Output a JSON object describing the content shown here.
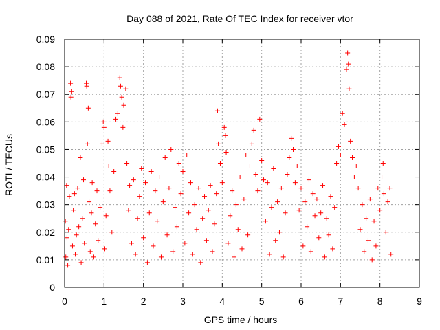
{
  "chart_data": {
    "type": "scatter",
    "title": "Day 088 of 2021, Rate Of TEC Index for receiver vtor",
    "xlabel": "GPS time / hours",
    "ylabel": "ROTI / TECUs",
    "xlim": [
      0,
      9
    ],
    "ylim": [
      0,
      0.09
    ],
    "xticks": [
      0,
      1,
      2,
      3,
      4,
      5,
      6,
      7,
      8,
      9
    ],
    "yticks": [
      0,
      0.01,
      0.02,
      0.03,
      0.04,
      0.05,
      0.06,
      0.07,
      0.08,
      0.09
    ],
    "xtick_labels": [
      "0",
      "1",
      "2",
      "3",
      "4",
      "5",
      "6",
      "7",
      "8",
      "9"
    ],
    "ytick_labels": [
      "0",
      "0.01",
      "0.02",
      "0.03",
      "0.04",
      "0.05",
      "0.06",
      "0.07",
      "0.08",
      "0.09"
    ],
    "grid": true,
    "marker": "+",
    "color": "#ff0000",
    "series": [
      {
        "points": [
          [
            0.02,
            0.024
          ],
          [
            0.03,
            0.011
          ],
          [
            0.05,
            0.037
          ],
          [
            0.06,
            0.018
          ],
          [
            0.08,
            0.008
          ],
          [
            0.1,
            0.021
          ],
          [
            0.12,
            0.033
          ],
          [
            0.15,
            0.074
          ],
          [
            0.16,
            0.069
          ],
          [
            0.18,
            0.071
          ],
          [
            0.2,
            0.015
          ],
          [
            0.22,
            0.028
          ],
          [
            0.25,
            0.034
          ],
          [
            0.27,
            0.012
          ],
          [
            0.3,
            0.019
          ],
          [
            0.33,
            0.036
          ],
          [
            0.36,
            0.022
          ],
          [
            0.4,
            0.047
          ],
          [
            0.42,
            0.009
          ],
          [
            0.45,
            0.025
          ],
          [
            0.48,
            0.039
          ],
          [
            0.5,
            0.016
          ],
          [
            0.55,
            0.074
          ],
          [
            0.56,
            0.073
          ],
          [
            0.58,
            0.052
          ],
          [
            0.6,
            0.065
          ],
          [
            0.62,
            0.031
          ],
          [
            0.65,
            0.013
          ],
          [
            0.68,
            0.027
          ],
          [
            0.7,
            0.038
          ],
          [
            0.74,
            0.011
          ],
          [
            0.78,
            0.023
          ],
          [
            0.82,
            0.035
          ],
          [
            0.85,
            0.017
          ],
          [
            0.9,
            0.029
          ],
          [
            0.95,
            0.052
          ],
          [
            0.98,
            0.06
          ],
          [
            1.0,
            0.058
          ],
          [
            1.02,
            0.014
          ],
          [
            1.05,
            0.026
          ],
          [
            1.1,
            0.053
          ],
          [
            1.12,
            0.044
          ],
          [
            1.15,
            0.035
          ],
          [
            1.2,
            0.02
          ],
          [
            1.25,
            0.042
          ],
          [
            1.3,
            0.061
          ],
          [
            1.35,
            0.063
          ],
          [
            1.4,
            0.076
          ],
          [
            1.42,
            0.073
          ],
          [
            1.45,
            0.069
          ],
          [
            1.48,
            0.058
          ],
          [
            1.5,
            0.066
          ],
          [
            1.55,
            0.072
          ],
          [
            1.58,
            0.045
          ],
          [
            1.62,
            0.028
          ],
          [
            1.65,
            0.037
          ],
          [
            1.7,
            0.016
          ],
          [
            1.75,
            0.039
          ],
          [
            1.8,
            0.012
          ],
          [
            1.85,
            0.025
          ],
          [
            1.9,
            0.033
          ],
          [
            1.95,
            0.043
          ],
          [
            2.0,
            0.018
          ],
          [
            2.05,
            0.038
          ],
          [
            2.1,
            0.009
          ],
          [
            2.15,
            0.027
          ],
          [
            2.2,
            0.042
          ],
          [
            2.25,
            0.015
          ],
          [
            2.3,
            0.035
          ],
          [
            2.35,
            0.024
          ],
          [
            2.4,
            0.04
          ],
          [
            2.45,
            0.011
          ],
          [
            2.5,
            0.031
          ],
          [
            2.55,
            0.047
          ],
          [
            2.6,
            0.019
          ],
          [
            2.65,
            0.036
          ],
          [
            2.7,
            0.05
          ],
          [
            2.75,
            0.013
          ],
          [
            2.8,
            0.029
          ],
          [
            2.85,
            0.022
          ],
          [
            2.9,
            0.045
          ],
          [
            2.95,
            0.034
          ],
          [
            3.0,
            0.042
          ],
          [
            3.05,
            0.016
          ],
          [
            3.1,
            0.048
          ],
          [
            3.15,
            0.027
          ],
          [
            3.2,
            0.038
          ],
          [
            3.25,
            0.012
          ],
          [
            3.3,
            0.03
          ],
          [
            3.35,
            0.021
          ],
          [
            3.4,
            0.036
          ],
          [
            3.45,
            0.009
          ],
          [
            3.5,
            0.025
          ],
          [
            3.55,
            0.033
          ],
          [
            3.6,
            0.017
          ],
          [
            3.65,
            0.028
          ],
          [
            3.7,
            0.037
          ],
          [
            3.75,
            0.013
          ],
          [
            3.8,
            0.023
          ],
          [
            3.85,
            0.034
          ],
          [
            3.88,
            0.064
          ],
          [
            3.9,
            0.052
          ],
          [
            3.95,
            0.045
          ],
          [
            4.0,
            0.038
          ],
          [
            4.05,
            0.058
          ],
          [
            4.08,
            0.055
          ],
          [
            4.1,
            0.049
          ],
          [
            4.15,
            0.016
          ],
          [
            4.2,
            0.026
          ],
          [
            4.25,
            0.035
          ],
          [
            4.3,
            0.011
          ],
          [
            4.35,
            0.03
          ],
          [
            4.4,
            0.021
          ],
          [
            4.45,
            0.04
          ],
          [
            4.5,
            0.014
          ],
          [
            4.55,
            0.032
          ],
          [
            4.6,
            0.048
          ],
          [
            4.65,
            0.019
          ],
          [
            4.7,
            0.044
          ],
          [
            4.75,
            0.052
          ],
          [
            4.8,
            0.057
          ],
          [
            4.85,
            0.041
          ],
          [
            4.9,
            0.035
          ],
          [
            4.95,
            0.061
          ],
          [
            5.0,
            0.046
          ],
          [
            5.05,
            0.039
          ],
          [
            5.1,
            0.024
          ],
          [
            5.15,
            0.038
          ],
          [
            5.2,
            0.012
          ],
          [
            5.25,
            0.029
          ],
          [
            5.3,
            0.043
          ],
          [
            5.35,
            0.017
          ],
          [
            5.4,
            0.031
          ],
          [
            5.45,
            0.02
          ],
          [
            5.5,
            0.036
          ],
          [
            5.55,
            0.011
          ],
          [
            5.6,
            0.027
          ],
          [
            5.65,
            0.041
          ],
          [
            5.7,
            0.047
          ],
          [
            5.75,
            0.054
          ],
          [
            5.8,
            0.05
          ],
          [
            5.85,
            0.038
          ],
          [
            5.9,
            0.044
          ],
          [
            5.95,
            0.028
          ],
          [
            6.0,
            0.036
          ],
          [
            6.05,
            0.015
          ],
          [
            6.1,
            0.031
          ],
          [
            6.15,
            0.022
          ],
          [
            6.2,
            0.039
          ],
          [
            6.25,
            0.013
          ],
          [
            6.3,
            0.034
          ],
          [
            6.35,
            0.026
          ],
          [
            6.4,
            0.032
          ],
          [
            6.45,
            0.018
          ],
          [
            6.5,
            0.027
          ],
          [
            6.55,
            0.037
          ],
          [
            6.6,
            0.011
          ],
          [
            6.65,
            0.025
          ],
          [
            6.7,
            0.019
          ],
          [
            6.75,
            0.033
          ],
          [
            6.8,
            0.014
          ],
          [
            6.85,
            0.029
          ],
          [
            6.9,
            0.045
          ],
          [
            6.95,
            0.051
          ],
          [
            7.0,
            0.048
          ],
          [
            7.05,
            0.063
          ],
          [
            7.1,
            0.059
          ],
          [
            7.15,
            0.079
          ],
          [
            7.18,
            0.085
          ],
          [
            7.2,
            0.081
          ],
          [
            7.22,
            0.072
          ],
          [
            7.25,
            0.053
          ],
          [
            7.3,
            0.047
          ],
          [
            7.35,
            0.04
          ],
          [
            7.4,
            0.044
          ],
          [
            7.45,
            0.036
          ],
          [
            7.5,
            0.021
          ],
          [
            7.55,
            0.03
          ],
          [
            7.6,
            0.013
          ],
          [
            7.65,
            0.025
          ],
          [
            7.7,
            0.017
          ],
          [
            7.75,
            0.032
          ],
          [
            7.8,
            0.01
          ],
          [
            7.85,
            0.024
          ],
          [
            7.9,
            0.015
          ],
          [
            7.95,
            0.036
          ],
          [
            8.0,
            0.028
          ],
          [
            8.05,
            0.04
          ],
          [
            8.08,
            0.045
          ],
          [
            8.1,
            0.034
          ],
          [
            8.15,
            0.02
          ],
          [
            8.2,
            0.031
          ],
          [
            8.25,
            0.036
          ],
          [
            8.28,
            0.012
          ]
        ]
      }
    ]
  }
}
